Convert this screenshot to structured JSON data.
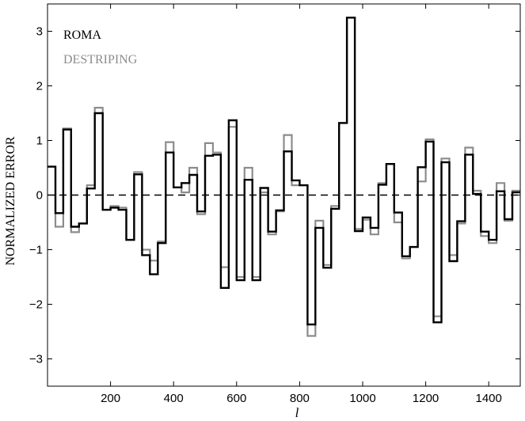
{
  "chart_data": {
    "type": "line",
    "step": true,
    "xlabel": "l",
    "ylabel": "NORMALIZED ERROR",
    "xlim": [
      0,
      1500
    ],
    "ylim": [
      -3.5,
      3.5
    ],
    "x_ticks": [
      200,
      400,
      600,
      800,
      1000,
      1200,
      1400
    ],
    "y_ticks": [
      -3,
      -2,
      -1,
      0,
      1,
      2,
      3
    ],
    "x_tick_labels": [
      "200",
      "400",
      "600",
      "800",
      "1000",
      "1200",
      "1400"
    ],
    "y_tick_labels": [
      "−3",
      "−2",
      "−1",
      "0",
      "1",
      "2",
      "3"
    ],
    "zero_line": {
      "y": 0,
      "style": "dashed",
      "color": "#000000"
    },
    "legend": {
      "position": "top-left",
      "entries": [
        "ROMA",
        "DESTRIPING"
      ]
    },
    "bin_edges": [
      0,
      25,
      50,
      75,
      100,
      125,
      150,
      175,
      200,
      225,
      250,
      275,
      300,
      325,
      350,
      375,
      400,
      425,
      450,
      475,
      500,
      525,
      550,
      575,
      600,
      625,
      650,
      675,
      700,
      725,
      750,
      775,
      800,
      825,
      850,
      875,
      900,
      925,
      950,
      975,
      1000,
      1025,
      1050,
      1075,
      1100,
      1125,
      1150,
      1175,
      1200,
      1225,
      1250,
      1275,
      1300,
      1325,
      1350,
      1375,
      1400,
      1425,
      1450,
      1475,
      1500
    ],
    "series": [
      {
        "name": "ROMA",
        "color": "#000000",
        "values": [
          0.52,
          -0.33,
          1.2,
          -0.58,
          -0.52,
          0.12,
          1.5,
          -0.27,
          -0.23,
          -0.27,
          -0.82,
          0.38,
          -1.1,
          -1.45,
          -0.88,
          0.78,
          0.14,
          0.22,
          0.37,
          -0.3,
          0.72,
          0.74,
          -1.7,
          1.37,
          -1.56,
          0.28,
          -1.56,
          0.13,
          -0.67,
          -0.28,
          0.8,
          0.27,
          0.18,
          -2.37,
          -0.6,
          -1.33,
          -0.25,
          1.32,
          3.25,
          -0.66,
          -0.41,
          -0.6,
          0.19,
          0.57,
          -0.32,
          -1.12,
          -0.95,
          0.51,
          0.98,
          -2.33,
          0.6,
          -1.21,
          -0.48,
          0.74,
          0.02,
          -0.67,
          -0.82,
          0.07,
          -0.44,
          0.05
        ]
      },
      {
        "name": "DESTRIPING",
        "color": "#8c8c8c",
        "values": [
          0.52,
          -0.58,
          1.22,
          -0.68,
          -0.52,
          0.18,
          1.6,
          -0.27,
          -0.2,
          -0.23,
          -0.82,
          0.42,
          -1.0,
          -1.2,
          -0.85,
          0.97,
          0.14,
          0.05,
          0.5,
          -0.35,
          0.95,
          0.78,
          -1.32,
          1.25,
          -1.5,
          0.5,
          -1.5,
          0.05,
          -0.72,
          -0.3,
          1.1,
          0.18,
          0.18,
          -2.58,
          -0.47,
          -1.28,
          -0.2,
          1.32,
          3.25,
          -0.62,
          -0.45,
          -0.72,
          0.22,
          0.57,
          -0.5,
          -1.16,
          -0.95,
          0.25,
          1.02,
          -2.22,
          0.67,
          -1.1,
          -0.52,
          0.87,
          0.08,
          -0.75,
          -0.88,
          0.22,
          -0.47,
          0.08
        ]
      }
    ]
  }
}
